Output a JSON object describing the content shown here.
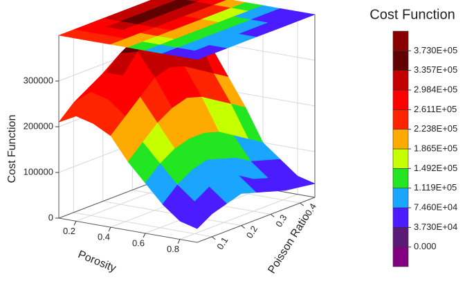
{
  "chart_data": {
    "type": "surface3d",
    "xlabel": "Porosity",
    "ylabel": "Poisson Ratio",
    "zlabel": "Cost Function",
    "x": [
      0.1,
      0.2,
      0.3,
      0.4,
      0.5,
      0.6,
      0.7,
      0.8,
      0.9
    ],
    "y": [
      0.05,
      0.1,
      0.15,
      0.2,
      0.25,
      0.3,
      0.35,
      0.4,
      0.45
    ],
    "z": [
      [
        210000,
        240000,
        260000,
        280000,
        290000,
        300000,
        300000,
        290000,
        280000
      ],
      [
        230000,
        270000,
        300000,
        330000,
        350000,
        360000,
        350000,
        330000,
        300000
      ],
      [
        220000,
        260000,
        300000,
        340000,
        370000,
        380000,
        360000,
        330000,
        290000
      ],
      [
        200000,
        230000,
        260000,
        290000,
        300000,
        290000,
        270000,
        250000,
        230000
      ],
      [
        150000,
        180000,
        210000,
        230000,
        240000,
        230000,
        210000,
        190000,
        170000
      ],
      [
        110000,
        140000,
        160000,
        170000,
        170000,
        160000,
        140000,
        120000,
        100000
      ],
      [
        70000,
        100000,
        120000,
        130000,
        120000,
        110000,
        90000,
        80000,
        70000
      ],
      [
        40000,
        70000,
        90000,
        100000,
        90000,
        70000,
        60000,
        50000,
        40000
      ],
      [
        30000,
        50000,
        60000,
        70000,
        60000,
        50000,
        40000,
        35000,
        30000
      ]
    ],
    "xlim": [
      0.1,
      0.9
    ],
    "xticks": [
      0.2,
      0.4,
      0.6,
      0.8
    ],
    "ylim": [
      0.05,
      0.45
    ],
    "yticks": [
      0.1,
      0.2,
      0.3,
      0.4
    ],
    "zlim": [
      0,
      400000
    ],
    "zticks": [
      0,
      100000,
      200000,
      300000
    ],
    "grid": true,
    "top_contour": true,
    "colorbar": {
      "title": "Cost Function",
      "ticks": [
        {
          "value": 0,
          "label": "0.000"
        },
        {
          "value": 37300,
          "label": "3.730E+04"
        },
        {
          "value": 74600,
          "label": "7.460E+04"
        },
        {
          "value": 111900,
          "label": "1.119E+05"
        },
        {
          "value": 149200,
          "label": "1.492E+05"
        },
        {
          "value": 186500,
          "label": "1.865E+05"
        },
        {
          "value": 223800,
          "label": "2.238E+05"
        },
        {
          "value": 261100,
          "label": "2.611E+05"
        },
        {
          "value": 298400,
          "label": "2.984E+05"
        },
        {
          "value": 335700,
          "label": "3.357E+05"
        },
        {
          "value": 373000,
          "label": "3.730E+05"
        }
      ],
      "colors": [
        "#800080",
        "#5c1a78",
        "#4a1cff",
        "#1aa6ff",
        "#22e622",
        "#c6ff00",
        "#ffaa00",
        "#ff2400",
        "#ff0000",
        "#c20000",
        "#600000",
        "#8a0000"
      ]
    }
  }
}
